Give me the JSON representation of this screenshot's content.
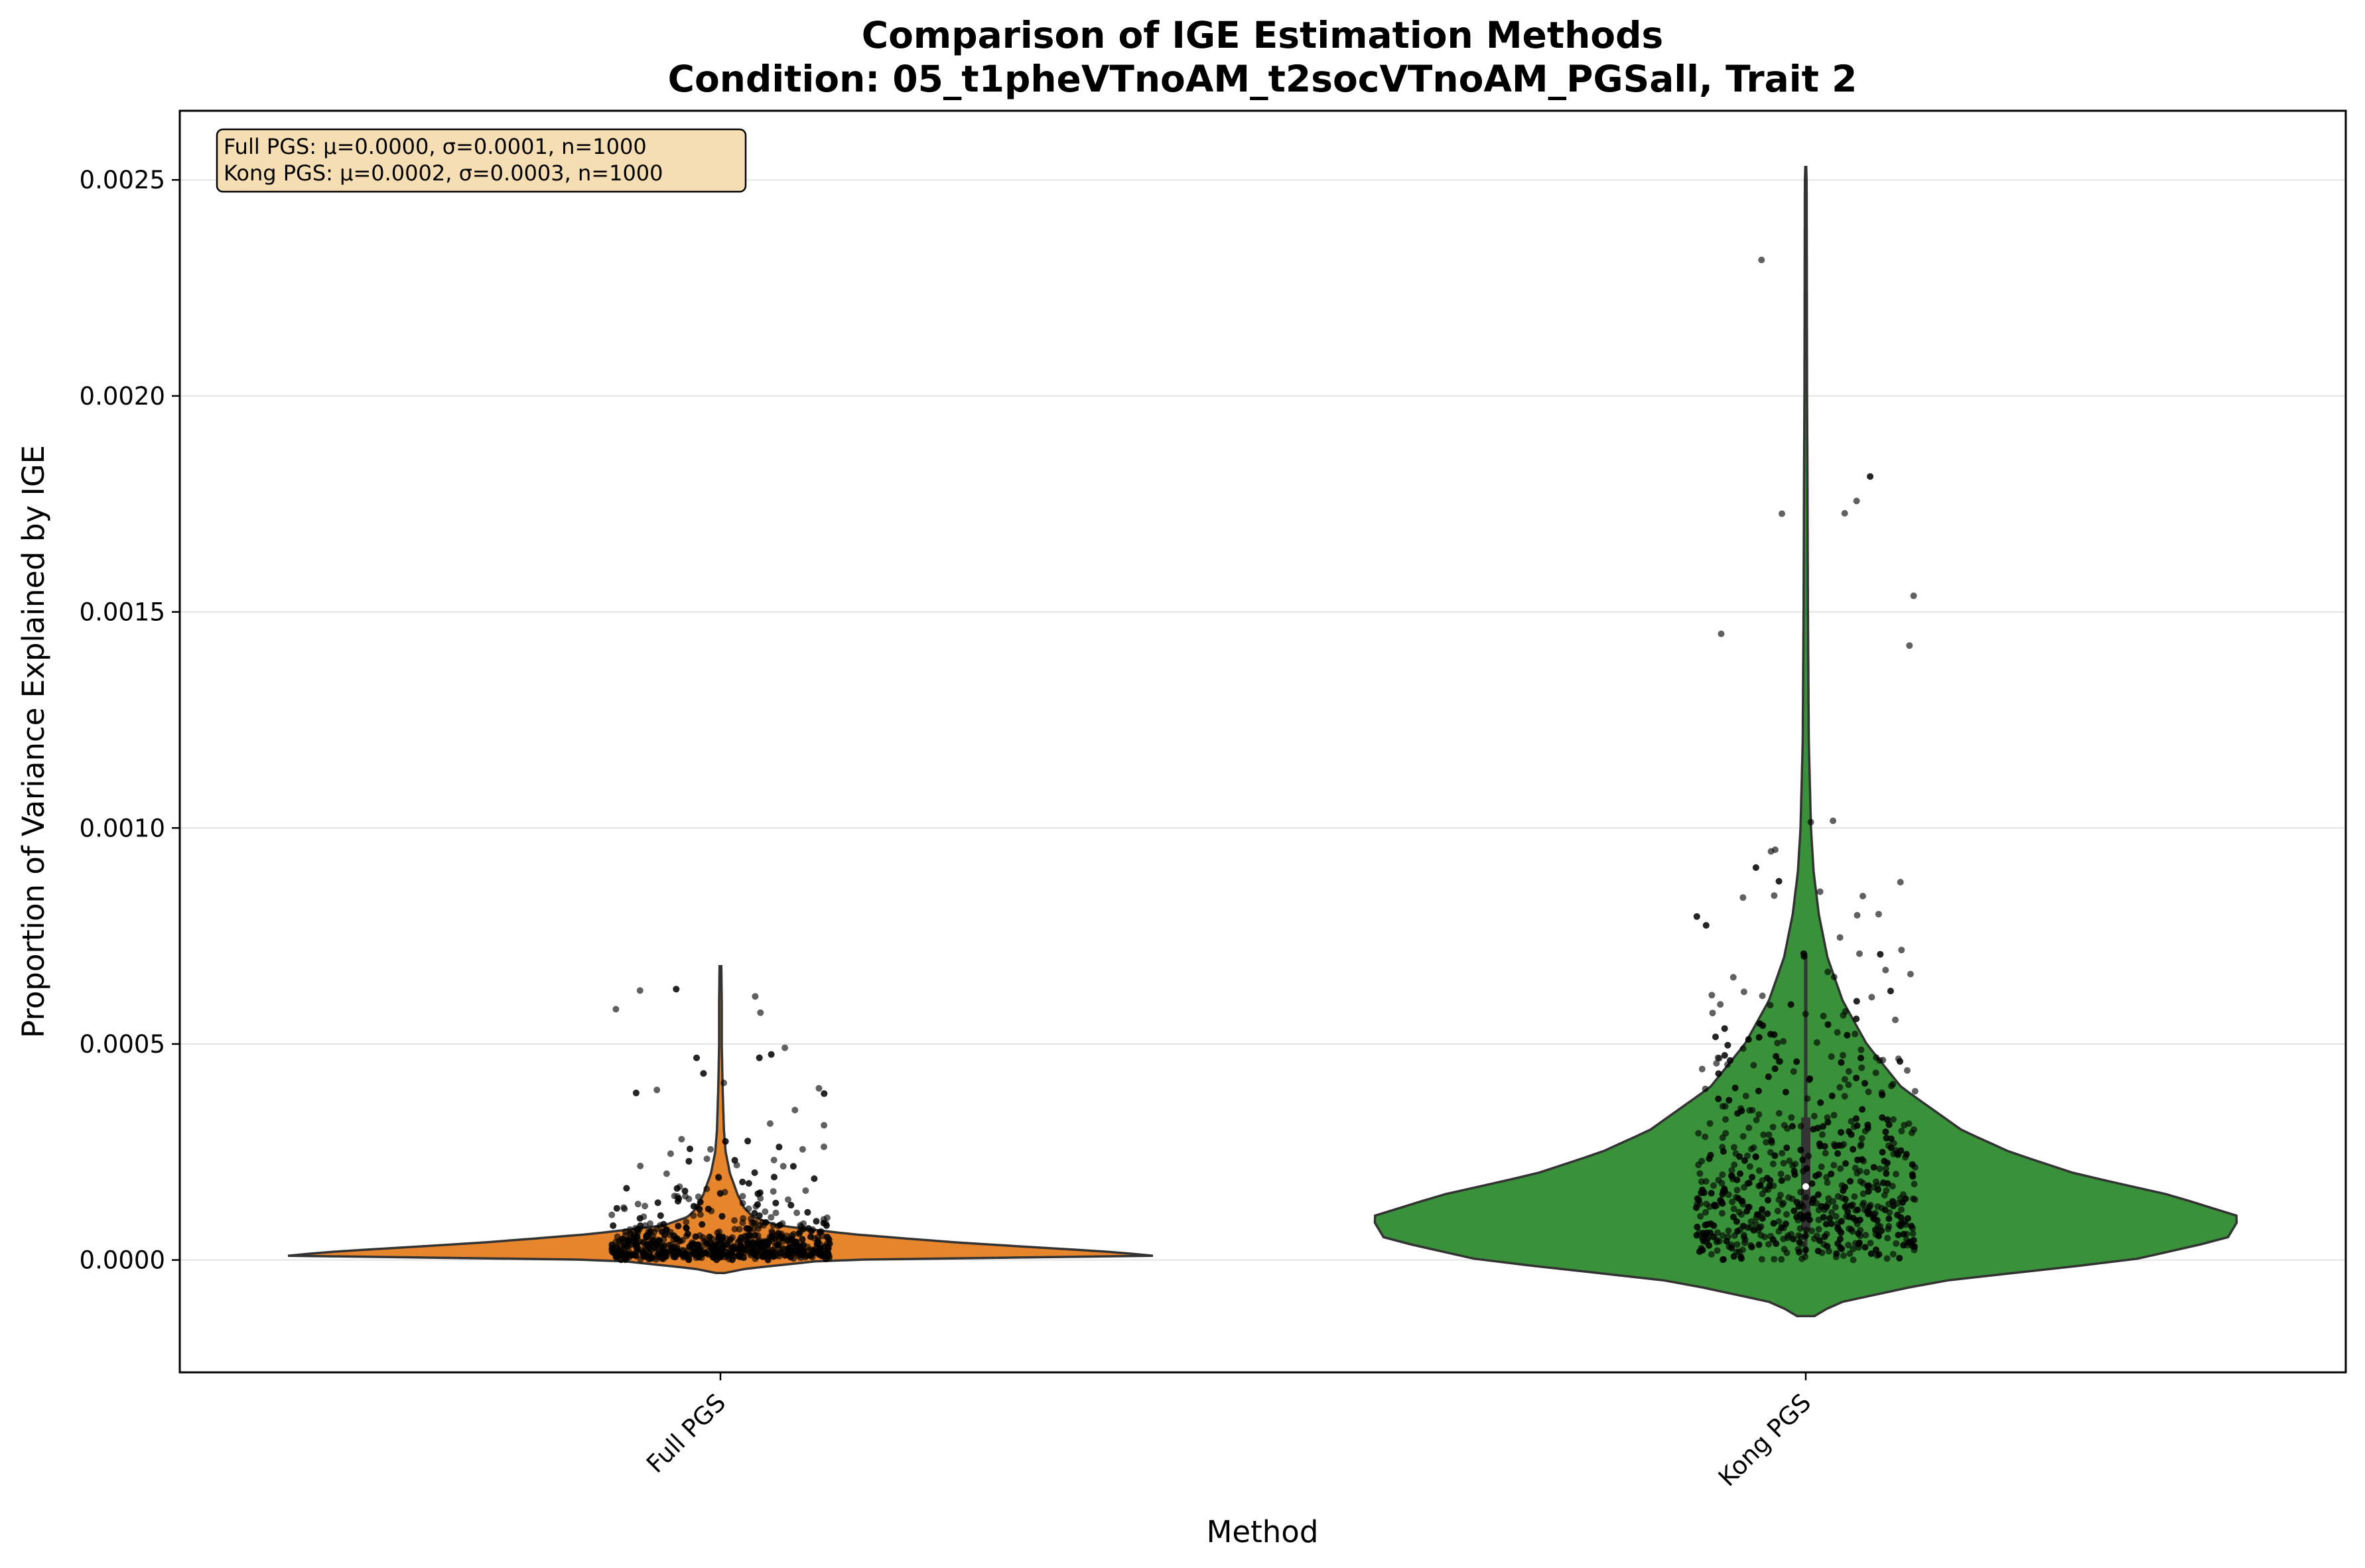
{
  "chart_data": {
    "type": "violin",
    "title": "Comparison of IGE Estimation Methods",
    "subtitle": "Condition: 05_t1pheVTnoAM_t2socVTnoAM_PGSall, Trait 2",
    "xlabel": "Method",
    "ylabel": "Proportion of Variance Explained by IGE",
    "ylim": [
      -0.00026,
      0.00266
    ],
    "yticks": [
      0.0,
      0.0005,
      0.001,
      0.0015,
      0.002,
      0.0025
    ],
    "ytick_labels": [
      "0.0000",
      "0.0005",
      "0.0010",
      "0.0015",
      "0.0020",
      "0.0025"
    ],
    "grid": "horizontal",
    "categories": [
      "Full PGS",
      "Kong PGS"
    ],
    "series": [
      {
        "name": "Full PGS",
        "color": "#e67e22",
        "n": 1000,
        "mean": 0.0,
        "sd": 0.0001,
        "median": 3e-05,
        "q1": 1e-05,
        "q3": 6e-05,
        "points_shown_max": 0.00065,
        "violin_extent": [
          -3e-05,
          0.00068
        ],
        "density_profile": [
          [
            -3e-05,
            0.01
          ],
          [
            -2e-05,
            0.06
          ],
          [
            0.0,
            0.25
          ],
          [
            1e-05,
            1.0
          ],
          [
            2e-05,
            0.88
          ],
          [
            4e-05,
            0.55
          ],
          [
            6e-05,
            0.3
          ],
          [
            8e-05,
            0.13
          ],
          [
            0.0001,
            0.075
          ],
          [
            0.00012,
            0.055
          ],
          [
            0.00015,
            0.04
          ],
          [
            0.0002,
            0.022
          ],
          [
            0.00025,
            0.012
          ],
          [
            0.0003,
            0.008
          ],
          [
            0.0004,
            0.005
          ],
          [
            0.0005,
            0.003
          ],
          [
            0.0006,
            0.003
          ],
          [
            0.00068,
            0.002
          ]
        ]
      },
      {
        "name": "Kong PGS",
        "color": "#2e8b2e",
        "n": 1000,
        "mean": 0.0002,
        "sd": 0.0003,
        "median": 0.00017,
        "q1": 7e-05,
        "q3": 0.00033,
        "whisker": [
          1e-05,
          0.00071
        ],
        "points_shown_max": 0.0024,
        "violin_extent": [
          -0.00013,
          0.00253
        ],
        "density_profile": [
          [
            -0.00013,
            0.02
          ],
          [
            -0.0001,
            0.07
          ],
          [
            -5e-05,
            0.3
          ],
          [
            0.0,
            0.75
          ],
          [
            5e-05,
            0.97
          ],
          [
            0.0001,
            1.0
          ],
          [
            0.00015,
            0.84
          ],
          [
            0.0002,
            0.62
          ],
          [
            0.00025,
            0.47
          ],
          [
            0.0003,
            0.36
          ],
          [
            0.0004,
            0.22
          ],
          [
            0.0005,
            0.14
          ],
          [
            0.0006,
            0.085
          ],
          [
            0.0007,
            0.05
          ],
          [
            0.0008,
            0.03
          ],
          [
            0.0009,
            0.018
          ],
          [
            0.001,
            0.012
          ],
          [
            0.0012,
            0.007
          ],
          [
            0.0015,
            0.005
          ],
          [
            0.0018,
            0.004
          ],
          [
            0.002,
            0.003
          ],
          [
            0.0025,
            0.002
          ],
          [
            0.00253,
            0.001
          ]
        ]
      }
    ],
    "stats_box": {
      "lines": [
        "Full PGS: μ=0.0000, σ=0.0001, n=1000",
        "Kong PGS: μ=0.0002, σ=0.0003, n=1000"
      ],
      "placement": "top-left"
    }
  }
}
